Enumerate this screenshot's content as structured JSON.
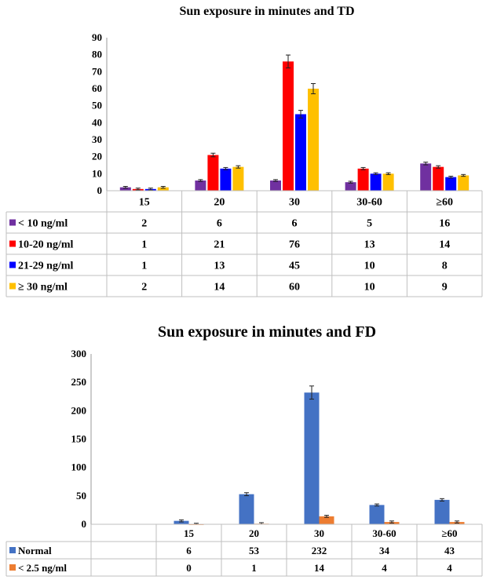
{
  "charts": [
    {
      "type": "bar",
      "title": "Sun exposure in minutes  and TD",
      "categories": [
        "15",
        "20",
        "30",
        "30-60",
        "≥60"
      ],
      "ylim": [
        0,
        90
      ],
      "yticks": [
        0,
        10,
        20,
        30,
        40,
        50,
        60,
        70,
        80,
        90
      ],
      "grid": false,
      "legend": "table-below",
      "error_bars": true,
      "series": [
        {
          "name": "< 10  ng/ml",
          "color": "#7030A0",
          "values": [
            2,
            6,
            6,
            5,
            16
          ]
        },
        {
          "name": "10-20  ng/ml",
          "color": "#FF0000",
          "values": [
            1,
            21,
            76,
            13,
            14
          ]
        },
        {
          "name": "21-29  ng/ml",
          "color": "#0000FF",
          "values": [
            1,
            13,
            45,
            10,
            8
          ]
        },
        {
          "name": "≥ 30 ng/ml",
          "color": "#FFC000",
          "values": [
            2,
            14,
            60,
            10,
            9
          ]
        }
      ]
    },
    {
      "type": "bar",
      "title": "Sun exposure in minutes  and FD",
      "categories": [
        "",
        "15",
        "20",
        "30",
        "30-60",
        "≥60"
      ],
      "ylim": [
        0,
        300
      ],
      "yticks": [
        0,
        50,
        100,
        150,
        200,
        250,
        300
      ],
      "grid": false,
      "legend": "table-below",
      "error_bars": true,
      "series": [
        {
          "name": "Normal",
          "color": "#4472C4",
          "values": [
            null,
            6,
            53,
            232,
            34,
            43
          ]
        },
        {
          "name": "< 2.5  ng/ml",
          "color": "#ED7D31",
          "values": [
            null,
            0,
            1,
            14,
            4,
            4
          ]
        }
      ]
    }
  ]
}
